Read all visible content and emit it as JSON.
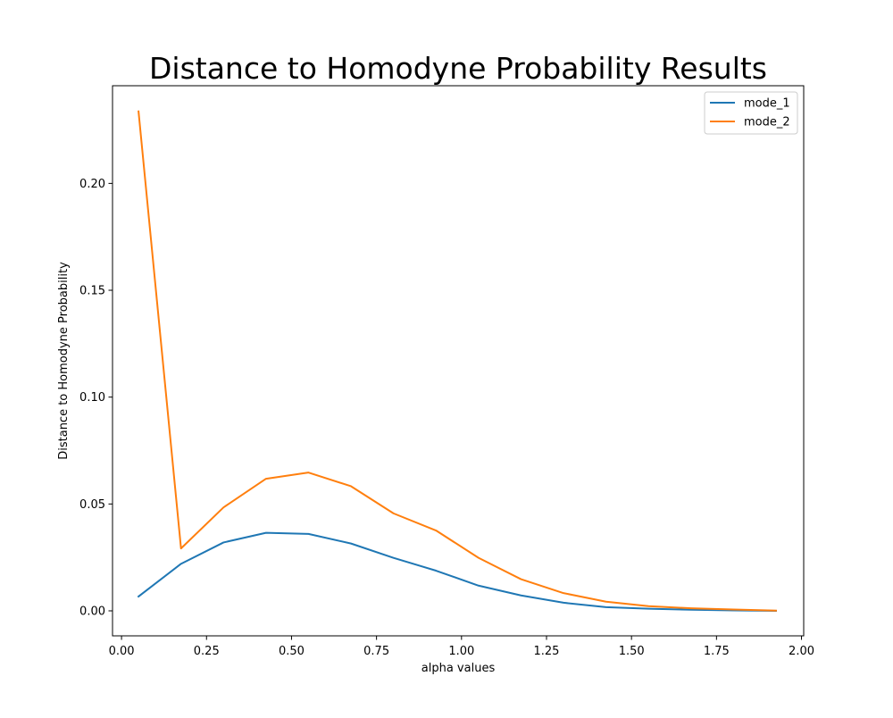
{
  "chart_data": {
    "type": "line",
    "title": "Distance to Homodyne Probability Results",
    "xlabel": "alpha values",
    "ylabel": "Distance to Homodyne Probability",
    "xlim": [
      -0.0265,
      2.0065
    ],
    "ylim": [
      -0.0117,
      0.2457
    ],
    "xticks": [
      0.0,
      0.25,
      0.5,
      0.75,
      1.0,
      1.25,
      1.5,
      1.75,
      2.0
    ],
    "xtick_labels": [
      "0.00",
      "0.25",
      "0.50",
      "0.75",
      "1.00",
      "1.25",
      "1.50",
      "1.75",
      "2.00"
    ],
    "yticks": [
      0.0,
      0.05,
      0.1,
      0.15,
      0.2
    ],
    "ytick_labels": [
      "0.00",
      "0.05",
      "0.10",
      "0.15",
      "0.20"
    ],
    "grid": false,
    "legend_position": "top-right",
    "x": [
      0.05,
      0.175,
      0.3,
      0.425,
      0.55,
      0.675,
      0.8,
      0.925,
      1.05,
      1.175,
      1.3,
      1.425,
      1.55,
      1.675,
      1.8,
      1.925
    ],
    "series": [
      {
        "name": "mode_1",
        "color": "#1f77b4",
        "values": [
          0.0067,
          0.022,
          0.032,
          0.0365,
          0.036,
          0.0315,
          0.0248,
          0.0188,
          0.0118,
          0.0072,
          0.0038,
          0.0017,
          0.001,
          0.0005,
          0.0002,
          0.0
        ]
      },
      {
        "name": "mode_2",
        "color": "#ff7f0e",
        "values": [
          0.2337,
          0.0292,
          0.0484,
          0.0618,
          0.0647,
          0.0583,
          0.0456,
          0.0376,
          0.0248,
          0.0148,
          0.0083,
          0.0043,
          0.0022,
          0.0012,
          0.0006,
          0.0001
        ]
      }
    ]
  }
}
